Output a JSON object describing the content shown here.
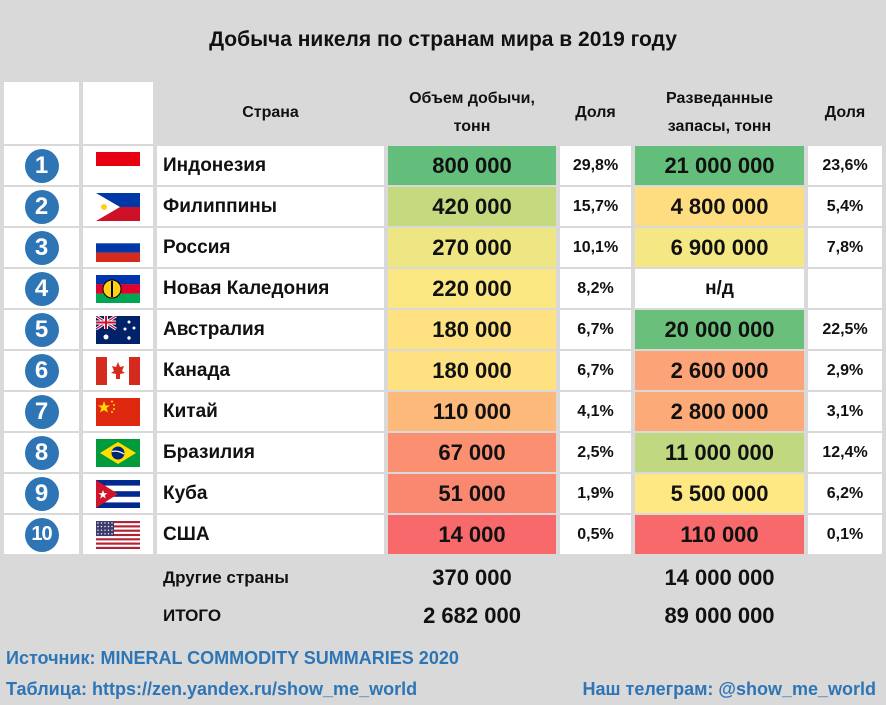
{
  "title": "Добыча никеля по странам мира в 2019 году",
  "headers": {
    "country": "Страна",
    "production_l1": "Объем добычи,",
    "production_l2": "тонн",
    "share1": "Доля",
    "reserves_l1": "Разведанные",
    "reserves_l2": "запасы, тонн",
    "share2": "Доля"
  },
  "rows": [
    {
      "rank": "1",
      "flag": "indonesia-flag",
      "country": "Индонезия",
      "production": "800 000",
      "share1": "29,8%",
      "reserves": "21 000 000",
      "share2": "23,6%",
      "prod_color": "#63be7b",
      "res_color": "#63be7b"
    },
    {
      "rank": "2",
      "flag": "philippines-flag",
      "country": "Филиппины",
      "production": "420 000",
      "share1": "15,7%",
      "reserves": "4 800 000",
      "share2": "5,4%",
      "prod_color": "#c5da7f",
      "res_color": "#fedd81"
    },
    {
      "rank": "3",
      "flag": "russia-flag",
      "country": "Россия",
      "production": "270 000",
      "share1": "10,1%",
      "reserves": "6 900 000",
      "share2": "7,8%",
      "prod_color": "#ede683",
      "res_color": "#f4e784"
    },
    {
      "rank": "4",
      "flag": "new-caledonia-flag",
      "country": "Новая Каледония",
      "production": "220 000",
      "share1": "8,2%",
      "reserves": "н/д",
      "share2": "",
      "prod_color": "#fbe883",
      "res_color": "#ffffff"
    },
    {
      "rank": "5",
      "flag": "australia-flag",
      "country": "Австралия",
      "production": "180 000",
      "share1": "6,7%",
      "reserves": "20 000 000",
      "share2": "22,5%",
      "prod_color": "#fee282",
      "res_color": "#6ac07b"
    },
    {
      "rank": "6",
      "flag": "canada-flag",
      "country": "Канада",
      "production": "180 000",
      "share1": "6,7%",
      "reserves": "2 600 000",
      "share2": "2,9%",
      "prod_color": "#fee282",
      "res_color": "#fca477"
    },
    {
      "rank": "7",
      "flag": "china-flag",
      "country": "Китай",
      "production": "110 000",
      "share1": "4,1%",
      "reserves": "2 800 000",
      "share2": "3,1%",
      "prod_color": "#fdb97a",
      "res_color": "#fcaa78"
    },
    {
      "rank": "8",
      "flag": "brazil-flag",
      "country": "Бразилия",
      "production": "67 000",
      "share1": "2,5%",
      "reserves": "11 000 000",
      "share2": "12,4%",
      "prod_color": "#fa8f71",
      "res_color": "#c0d980"
    },
    {
      "rank": "9",
      "flag": "cuba-flag",
      "country": "Куба",
      "production": "51 000",
      "share1": "1,9%",
      "reserves": "5 500 000",
      "share2": "6,2%",
      "prod_color": "#fa8871",
      "res_color": "#fee883"
    },
    {
      "rank": "10",
      "flag": "usa-flag",
      "country": "США",
      "production": "14 000",
      "share1": "0,5%",
      "reserves": "110 000",
      "share2": "0,1%",
      "prod_color": "#f8696b",
      "res_color": "#f8696b"
    }
  ],
  "other": {
    "label": "Другие страны",
    "production": "370 000",
    "reserves": "14 000 000"
  },
  "total": {
    "label": "ИТОГО",
    "production": "2 682 000",
    "reserves": "89 000 000"
  },
  "footer": {
    "source": "Источник: MINERAL COMMODITY SUMMARIES 2020",
    "table": "Таблица: https://zen.yandex.ru/show_me_world",
    "telegram": "Наш телеграм: @show_me_world"
  }
}
